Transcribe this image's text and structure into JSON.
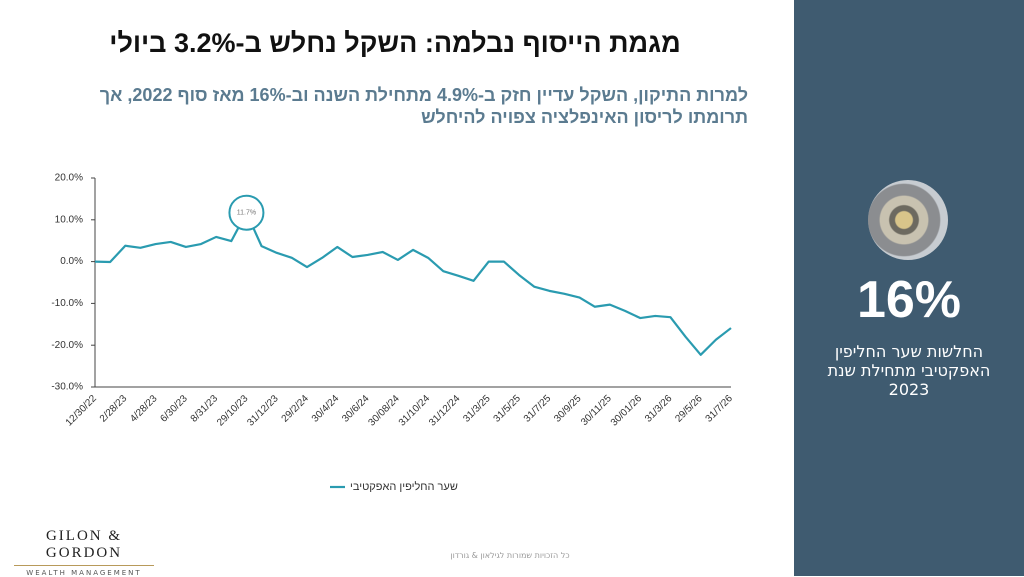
{
  "title": "מגמת הייסוף נבלמה: השקל נחלש ב-3.2% ביולי",
  "subtitle": "למרות התיקון, השקל עדיין חזק ב-4.9% מתחילת השנה וב-16% מאז סוף 2022, אך תרומתו לריסון האינפלציה צפויה להיחלש",
  "chart_data": {
    "type": "line",
    "categories": [
      "12/30/22",
      null,
      "2/28/23",
      null,
      "4/28/23",
      null,
      "6/30/23",
      null,
      "8/31/23",
      null,
      "29/10/23",
      null,
      "31/12/23",
      null,
      "29/2/24",
      null,
      "30/4/24",
      null,
      "30/6/24",
      null,
      "30/08/24",
      null,
      "31/10/24",
      null,
      "31/12/24",
      null,
      "31/3/25",
      null,
      "31/5/25",
      null,
      "31/7/25",
      null,
      "30/9/25",
      null,
      "30/11/25",
      null,
      "30/01/26",
      null,
      "31/3/26",
      null,
      "29/5/26",
      null,
      "31/7/26"
    ],
    "series": [
      {
        "name": "שער החליפין האפקטיבי",
        "color": "#2a9bb0",
        "values": [
          0.0,
          -0.1,
          3.8,
          3.3,
          4.2,
          4.7,
          3.5,
          4.2,
          5.9,
          4.9,
          11.7,
          3.7,
          2.1,
          0.9,
          -1.3,
          0.9,
          3.5,
          1.1,
          1.6,
          2.3,
          0.4,
          2.8,
          0.9,
          -2.3,
          -3.4,
          -4.6,
          0.0,
          0.0,
          -3.2,
          -6.0,
          -7.0,
          -7.7,
          -8.6,
          -10.8,
          -10.3,
          -11.8,
          -13.5,
          -13.0,
          -13.3,
          -18.0,
          -22.3,
          -18.7,
          -15.9
        ],
        "value_labels": [
          null,
          null,
          null,
          null,
          null,
          null,
          null,
          null,
          null,
          null,
          "11.7%",
          null,
          null,
          null,
          null,
          null,
          null,
          null,
          null,
          null,
          null,
          null,
          null,
          null,
          null,
          null,
          null,
          null,
          null,
          null,
          null,
          null,
          null,
          null,
          null,
          null,
          null,
          null,
          null,
          null,
          null,
          null,
          null
        ]
      }
    ],
    "ylim": [
      -30,
      20
    ],
    "yticks": [
      {
        "value": -30,
        "label": "-30.0%"
      },
      {
        "value": -20,
        "label": "-20.0%"
      },
      {
        "value": -10,
        "label": "-10.0%"
      },
      {
        "value": 0,
        "label": "0.0%"
      },
      {
        "value": 10,
        "label": "10.0%"
      },
      {
        "value": 20,
        "label": "20.0%"
      }
    ],
    "grid": false,
    "legend": "bottom"
  },
  "side_panel": {
    "headline": "16%",
    "caption_lines": [
      "החלשות שער החליפין",
      "האפקטיבי מתחילת שנת",
      "2023"
    ]
  },
  "logo": {
    "name": "GILON & GORDON",
    "tagline": "WEALTH MANAGEMENT"
  },
  "footer": "כל הזכויות שמורות לגילאון & גורדון"
}
